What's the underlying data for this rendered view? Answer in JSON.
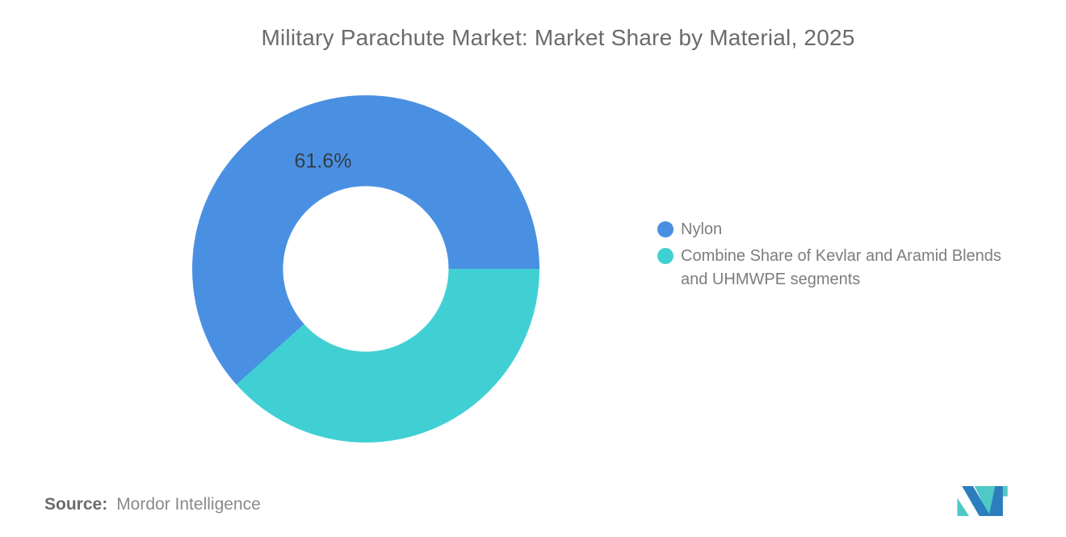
{
  "chart_data": {
    "type": "pie",
    "subtype": "donut",
    "title": "Military Parachute Market: Market Share by Material, 2025",
    "slices": [
      {
        "label": "Nylon",
        "value": 61.6,
        "color": "#4a90e2",
        "data_label": "61.6%"
      },
      {
        "label": "Combine Share of Kevlar and Aramid Blends and UHMWPE segments",
        "value": 38.4,
        "color": "#40d0d4",
        "data_label": ""
      }
    ],
    "start_angle_deg": 90,
    "direction": "counterclockwise",
    "hole_ratio": 0.477,
    "legend_position": "right",
    "data_label_color": "#333d47",
    "grid": false
  },
  "legend": {
    "items": [
      {
        "lines": [
          "Nylon",
          ""
        ]
      },
      {
        "lines": [
          "Combine Share of Kevlar and Aramid Blends",
          "and UHMWPE segments"
        ]
      }
    ]
  },
  "footer": {
    "source_label": "Source:",
    "source_value": "Mordor Intelligence"
  },
  "logo": {
    "name": "mordor-intelligence-logo",
    "blue": "#2b7dbd",
    "teal": "#4ec9c5"
  }
}
